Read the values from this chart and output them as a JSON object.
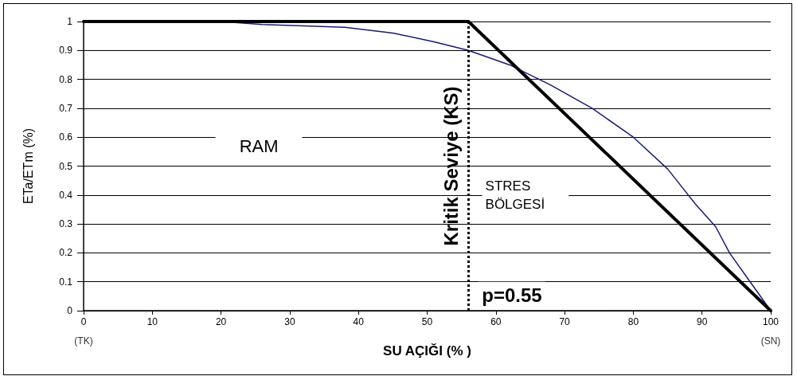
{
  "chart_data": {
    "type": "line",
    "xlabel": "SU AÇIĞI (% )",
    "ylabel": "ETa/ETm (%)",
    "xlim": [
      0,
      100
    ],
    "xticks": [
      0,
      10,
      20,
      30,
      40,
      50,
      60,
      70,
      80,
      90,
      100
    ],
    "ylim": [
      0,
      1
    ],
    "yticks": [
      0,
      0.1,
      0.2,
      0.3,
      0.4,
      0.5,
      0.6,
      0.7,
      0.8,
      0.9,
      1
    ],
    "grid": "y",
    "marker": "none",
    "series": [
      {
        "color": "#1a1a7a",
        "x": [
          0,
          20,
          26,
          38,
          45,
          51,
          56,
          62,
          68,
          74,
          80,
          85,
          89,
          92,
          94,
          97,
          100
        ],
        "values": [
          1,
          1,
          0.99,
          0.98,
          0.96,
          0.93,
          0.9,
          0.85,
          0.78,
          0.7,
          0.6,
          0.49,
          0.37,
          0.29,
          0.2,
          0.1,
          0
        ]
      },
      {
        "color": "#000000",
        "x": [
          0,
          56,
          100
        ],
        "values": [
          1,
          1,
          0
        ]
      }
    ],
    "ref_lines": [
      {
        "axis": "x",
        "value": 56,
        "label": "Kritik Seviye (KS)",
        "color": "#000000",
        "line_style": "dotted"
      }
    ],
    "annotations": [
      "RAM",
      "STRES\nBÖLGESİ",
      "p=0.55",
      "(TK)",
      "(SN)"
    ]
  }
}
